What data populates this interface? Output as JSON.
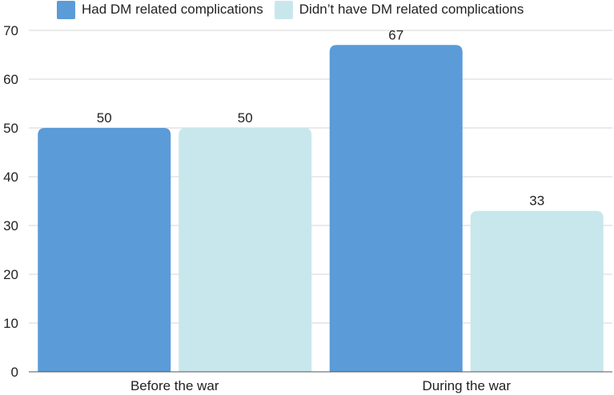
{
  "colors": {
    "series1": "#5b9bd8",
    "series2": "#c8e7ed",
    "grid": "#d6d6d6",
    "axis": "#555555"
  },
  "legend": {
    "position": "top",
    "items": [
      "Had DM related complications",
      "Didn’t have DM related complications"
    ]
  },
  "chart_data": {
    "type": "bar",
    "categories": [
      "Before the war",
      "During the war"
    ],
    "series": [
      {
        "name": "Had DM related complications",
        "values": [
          50,
          67
        ]
      },
      {
        "name": "Didn’t have DM related complications",
        "values": [
          50,
          33
        ]
      }
    ],
    "data_labels": [
      [
        "50",
        "67"
      ],
      [
        "50",
        "33"
      ]
    ],
    "ylim": [
      0,
      70
    ],
    "yticks": [
      0,
      10,
      20,
      30,
      40,
      50,
      60,
      70
    ],
    "grid": true,
    "xlabel": "",
    "ylabel": ""
  }
}
